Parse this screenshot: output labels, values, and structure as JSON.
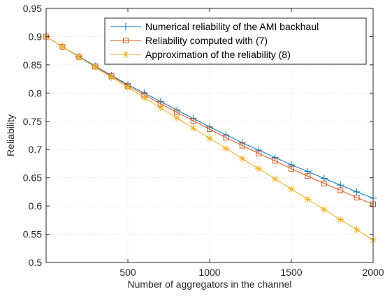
{
  "chart_data": {
    "type": "line",
    "title": "",
    "xlabel": "Number of aggregators in the channel",
    "ylabel": "Reliability",
    "xlim": [
      0,
      2000
    ],
    "ylim": [
      0.5,
      0.95
    ],
    "xticks": [
      500,
      1000,
      1500,
      2000
    ],
    "yticks": [
      0.5,
      0.55,
      0.6,
      0.65,
      0.7,
      0.75,
      0.8,
      0.85,
      0.9,
      0.95
    ],
    "grid": true,
    "legend_position": "top-right",
    "x": [
      0,
      100,
      200,
      300,
      400,
      500,
      600,
      700,
      800,
      900,
      1000,
      1100,
      1200,
      1300,
      1400,
      1500,
      1600,
      1700,
      1800,
      1900,
      2000
    ],
    "series": [
      {
        "name": "Numerical reliability of the AMI backhaul",
        "color": "#0072BD",
        "marker": "plus",
        "values": [
          0.9,
          0.882,
          0.865,
          0.848,
          0.831,
          0.815,
          0.8,
          0.785,
          0.77,
          0.755,
          0.74,
          0.726,
          0.712,
          0.699,
          0.686,
          0.673,
          0.661,
          0.649,
          0.637,
          0.625,
          0.614
        ]
      },
      {
        "name": "Reliability computed with (7)",
        "color": "#D95319",
        "marker": "square",
        "values": [
          0.9,
          0.882,
          0.864,
          0.847,
          0.83,
          0.813,
          0.797,
          0.781,
          0.766,
          0.751,
          0.736,
          0.721,
          0.707,
          0.693,
          0.68,
          0.666,
          0.653,
          0.64,
          0.628,
          0.615,
          0.603
        ]
      },
      {
        "name": "Approximation of the reliability (8)",
        "color": "#EDB120",
        "marker": "asterisk",
        "values": [
          0.9,
          0.882,
          0.864,
          0.846,
          0.828,
          0.81,
          0.792,
          0.774,
          0.756,
          0.738,
          0.72,
          0.702,
          0.684,
          0.666,
          0.648,
          0.63,
          0.612,
          0.594,
          0.576,
          0.558,
          0.54
        ]
      }
    ]
  }
}
